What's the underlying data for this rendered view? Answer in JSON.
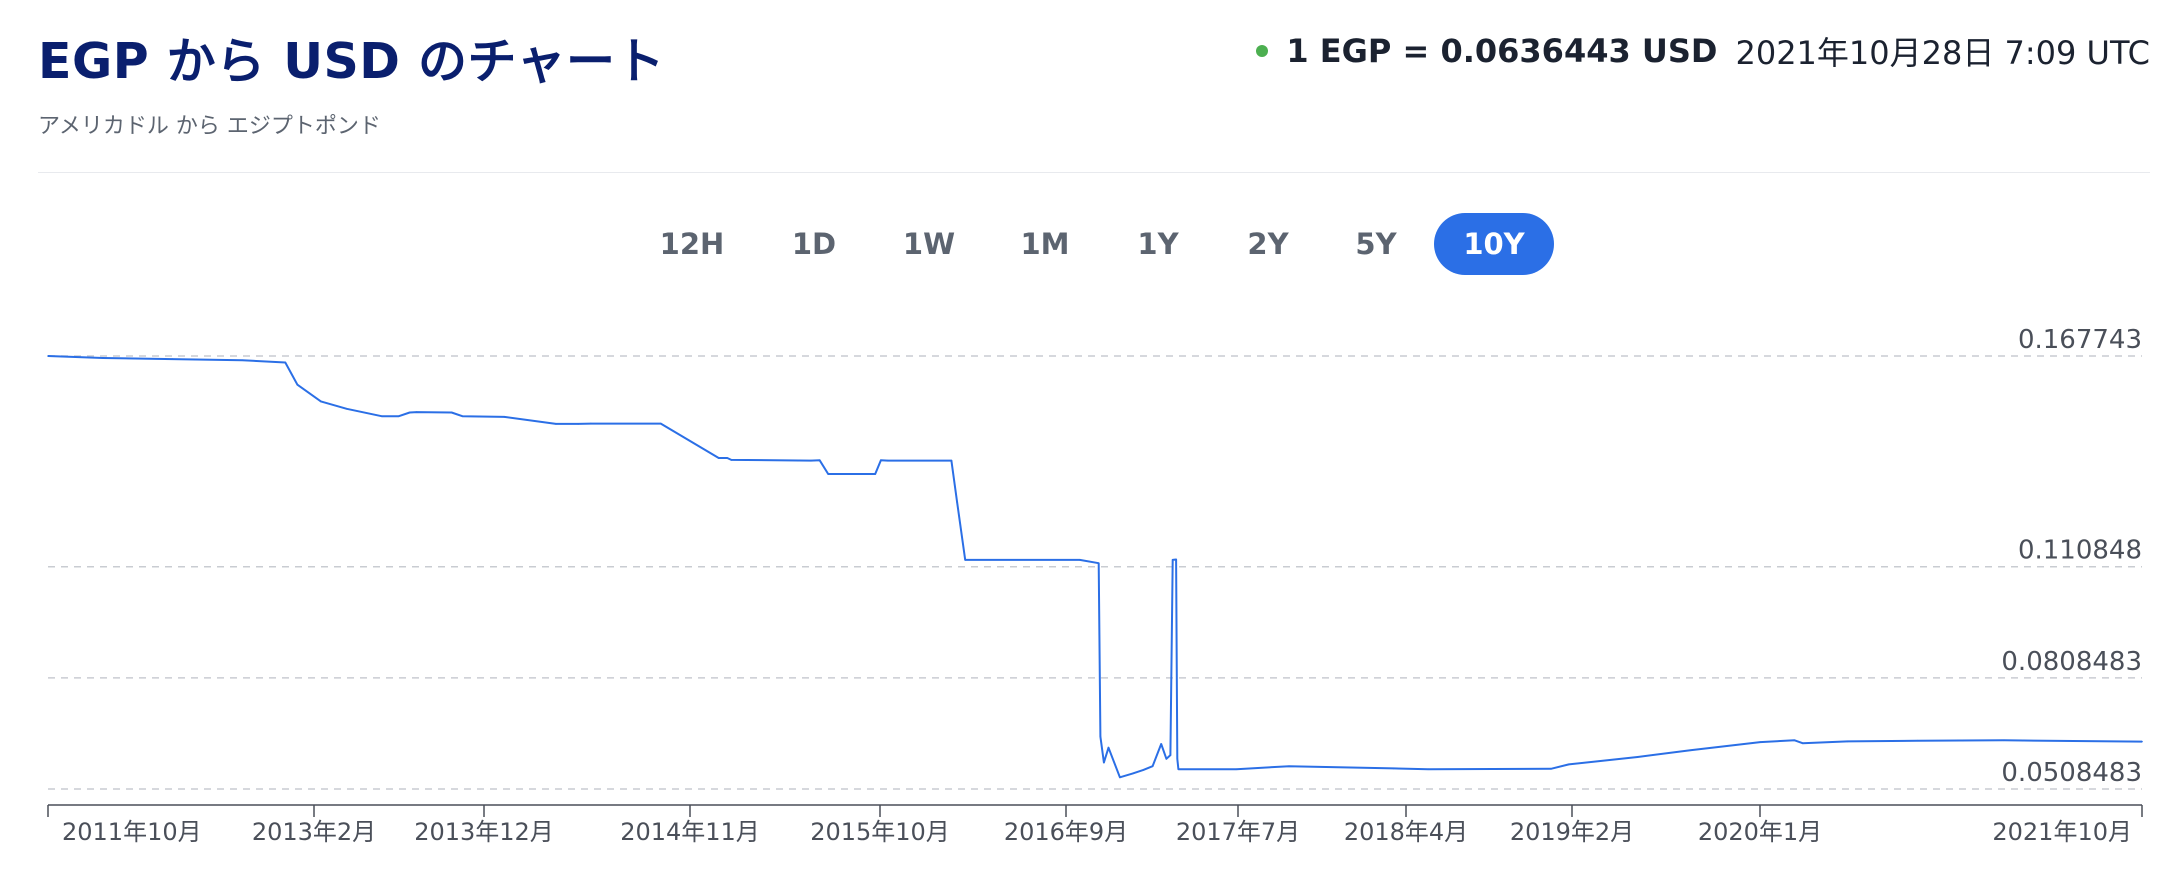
{
  "header": {
    "title": "EGP から USD のチャート",
    "subtitle": "アメリカドル から エジプトポンド"
  },
  "rate": {
    "text": "1 EGP = 0.0636443 USD",
    "timestamp": "2021年10月28日 7:09 UTC",
    "status_color": "#4caf50"
  },
  "ranges": {
    "items": [
      "12H",
      "1D",
      "1W",
      "1M",
      "1Y",
      "2Y",
      "5Y",
      "10Y"
    ],
    "active": "10Y",
    "active_color": "#2b6fe6"
  },
  "chart_data": {
    "type": "line",
    "title": "",
    "xlabel": "",
    "ylabel": "",
    "x_tick_labels": [
      "2011年10月",
      "2013年2月",
      "2013年12月",
      "2014年11月",
      "2015年10月",
      "2016年9月",
      "2017年7月",
      "2018年4月",
      "2019年2月",
      "2020年1月",
      "2021年10月"
    ],
    "y_tick_labels": [
      "0.167743",
      "0.110848",
      "0.0808483",
      "0.0508483"
    ],
    "y_ticks": [
      0.167743,
      0.110848,
      0.0808483,
      0.0508483
    ],
    "ylim": [
      0.0508483,
      0.167743
    ],
    "xlim": [
      "2011-10-28",
      "2021-10-28"
    ],
    "grid": "horizontal dashed",
    "line_color": "#2b6fe6",
    "series": [
      {
        "x": [
          "2011-10-28",
          "2012-02-01",
          "2012-06-01",
          "2012-10-01",
          "2012-12-15",
          "2013-01-05",
          "2013-02-15",
          "2013-04-01",
          "2013-06-01",
          "2013-07-01",
          "2013-07-20",
          "2013-08-01",
          "2013-10-01",
          "2013-10-20",
          "2014-01-01",
          "2014-04-01",
          "2014-05-10",
          "2014-06-01",
          "2014-10-01",
          "2015-01-10",
          "2015-01-25",
          "2015-02-01",
          "2015-06-20",
          "2015-07-05",
          "2015-07-20",
          "2015-10-10",
          "2015-10-20",
          "2015-11-01",
          "2016-02-20",
          "2016-03-01",
          "2016-03-15",
          "2016-10-01",
          "2016-11-03",
          "2016-11-06",
          "2016-11-12",
          "2016-11-20",
          "2016-12-10",
          "2017-01-01",
          "2017-01-20",
          "2017-02-05",
          "2017-02-20",
          "2017-03-01",
          "2017-03-08",
          "2017-03-12",
          "2017-03-18",
          "2017-03-20",
          "2017-03-22",
          "2017-07-01",
          "2017-10-01",
          "2018-04-01",
          "2018-06-01",
          "2019-01-01",
          "2019-02-01",
          "2019-06-01",
          "2019-09-01",
          "2020-01-01",
          "2020-03-01",
          "2020-03-15",
          "2020-06-01",
          "2020-10-01",
          "2021-03-01",
          "2021-10-28"
        ],
        "values": [
          0.16774,
          0.1672,
          0.1669,
          0.1666,
          0.166,
          0.16,
          0.1555,
          0.1535,
          0.1515,
          0.1515,
          0.1525,
          0.1526,
          0.1525,
          0.1515,
          0.1513,
          0.1494,
          0.1494,
          0.1495,
          0.1495,
          0.1402,
          0.1402,
          0.1397,
          0.1395,
          0.1396,
          0.1359,
          0.1359,
          0.1396,
          0.1395,
          0.1395,
          0.1283,
          0.1127,
          0.1127,
          0.1118,
          0.065,
          0.058,
          0.062,
          0.054,
          0.055,
          0.056,
          0.057,
          0.063,
          0.059,
          0.06,
          0.1127,
          0.1128,
          0.059,
          0.0562,
          0.0562,
          0.057,
          0.0564,
          0.0562,
          0.0563,
          0.0575,
          0.0595,
          0.0613,
          0.0635,
          0.064,
          0.0632,
          0.0637,
          0.0639,
          0.064,
          0.06364
        ]
      }
    ]
  }
}
